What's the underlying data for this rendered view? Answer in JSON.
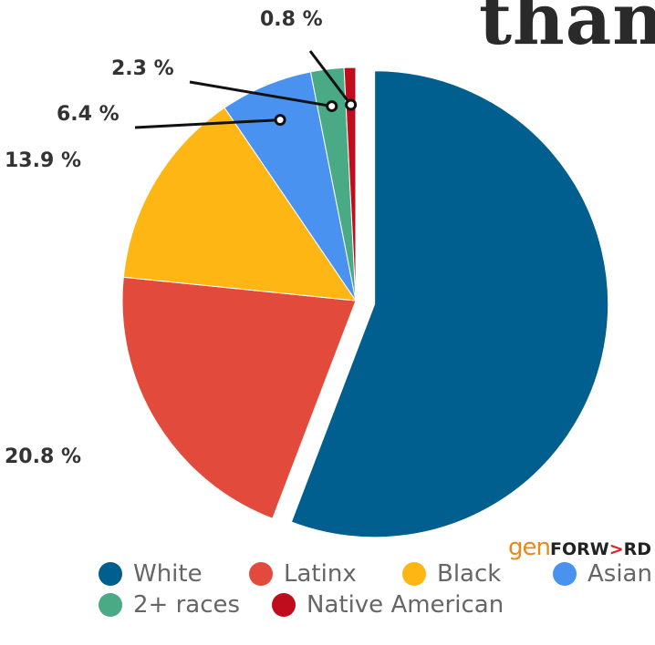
{
  "header": {
    "partial_title": "than"
  },
  "logo": {
    "gen": "gen",
    "forward_a": "FORW",
    "forward_b": ">",
    "forward_c": "RD"
  },
  "chart_data": {
    "type": "pie",
    "slices": [
      {
        "label": "White",
        "value": 55.8,
        "value_label": "",
        "color": "#005f8e"
      },
      {
        "label": "Latinx",
        "value": 20.8,
        "value_label": "20.8 %",
        "color": "#e24b3b"
      },
      {
        "label": "Black",
        "value": 13.9,
        "value_label": "13.9 %",
        "color": "#fdb614"
      },
      {
        "label": "Asian",
        "value": 6.4,
        "value_label": "6.4 %",
        "color": "#4a92f0"
      },
      {
        "label": "2+ races",
        "value": 2.3,
        "value_label": "2.3 %",
        "color": "#4aaa86"
      },
      {
        "label": "Native American",
        "value": 0.8,
        "value_label": "0.8 %",
        "color": "#c00d1e"
      }
    ],
    "exploded_slice": "White",
    "legend_position": "bottom"
  }
}
